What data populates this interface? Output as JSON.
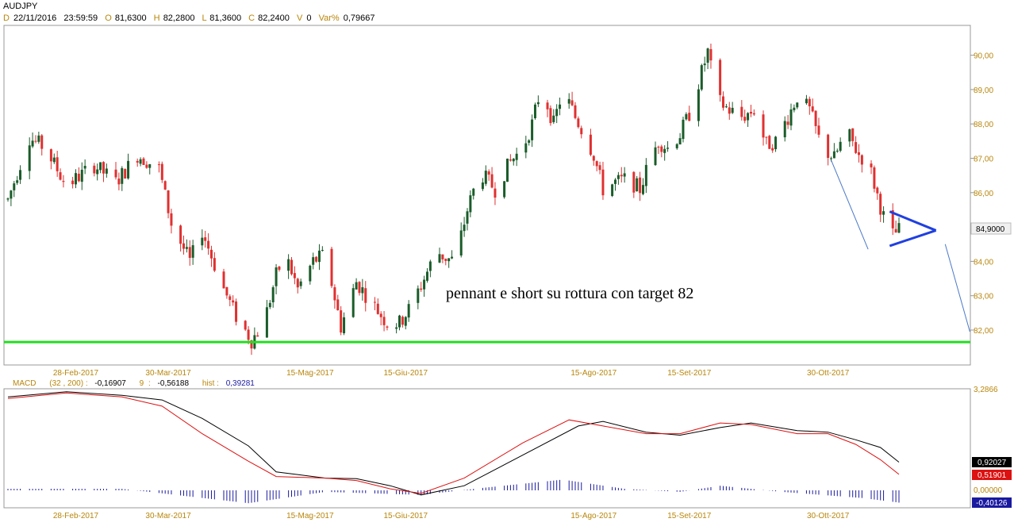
{
  "header": {
    "symbol": "AUDJPY",
    "date_label": "D",
    "date": "22/11/2016",
    "time": "23:59:59",
    "open_label": "O",
    "open": "81,6300",
    "high_label": "H",
    "high": "82,2800",
    "low_label": "L",
    "low": "81,3600",
    "close_label": "C",
    "close": "82,2400",
    "volume_label": "V",
    "volume": "0",
    "var_label": "Var%",
    "var": "0,79667"
  },
  "price_axis": {
    "ticks": [
      "90,00",
      "89,00",
      "88,00",
      "87,00",
      "86,00",
      "84,00",
      "83,00",
      "82,00"
    ],
    "last_price": "84,9000"
  },
  "date_axis": {
    "labels": [
      "28-Feb-2017",
      "30-Mar-2017",
      "15-Mag-2017",
      "15-Giu-2017",
      "15-Ago-2017",
      "15-Set-2017",
      "30-Ott-2017"
    ]
  },
  "annotation": "pennant e short su rottura con target 82",
  "macd": {
    "name": "MACD",
    "params": "(32 , 200) :",
    "macd_value": "-0,16907",
    "signal_period": "9",
    "signal_sep": ":",
    "signal_value": "-0,56188",
    "hist_label": "hist :",
    "hist_value": "0,39281",
    "axis_top": "3,2866",
    "axis_zero": "0,00000",
    "badge_black": "0,92027",
    "badge_red": "0,51901",
    "badge_blue": "-0,40126"
  },
  "colors": {
    "up_candle": "#1a5c2a",
    "down_candle": "#e03030",
    "support_line": "#22dd22",
    "trendline": "#4a78c8",
    "pennant": "#2040e0",
    "macd_line": "#000000",
    "signal_line": "#dd1111",
    "histogram": "#1a1aa0",
    "axis_label": "#b8860b"
  },
  "chart_data": [
    {
      "type": "candlestick",
      "title": "AUDJPY",
      "x_range": [
        "2017-02-06",
        "2017-11-22"
      ],
      "ylim": [
        81.0,
        90.5
      ],
      "price_path": [
        {
          "x": "2017-02-06",
          "y": 85.8
        },
        {
          "x": "2017-02-13",
          "y": 87.6
        },
        {
          "x": "2017-02-18",
          "y": 87.3
        },
        {
          "x": "2017-02-25",
          "y": 86.2
        },
        {
          "x": "2017-03-06",
          "y": 86.8
        },
        {
          "x": "2017-03-13",
          "y": 86.3
        },
        {
          "x": "2017-03-20",
          "y": 87.1
        },
        {
          "x": "2017-03-27",
          "y": 86.7
        },
        {
          "x": "2017-03-31",
          "y": 85.1
        },
        {
          "x": "2017-04-06",
          "y": 84.0
        },
        {
          "x": "2017-04-10",
          "y": 84.9
        },
        {
          "x": "2017-04-16",
          "y": 83.4
        },
        {
          "x": "2017-04-21",
          "y": 82.4
        },
        {
          "x": "2017-04-26",
          "y": 81.7
        },
        {
          "x": "2017-04-30",
          "y": 82.2
        },
        {
          "x": "2017-05-04",
          "y": 83.6
        },
        {
          "x": "2017-05-07",
          "y": 84.2
        },
        {
          "x": "2017-05-11",
          "y": 83.2
        },
        {
          "x": "2017-05-16",
          "y": 84.0
        },
        {
          "x": "2017-05-20",
          "y": 84.2
        },
        {
          "x": "2017-05-25",
          "y": 82.1
        },
        {
          "x": "2017-05-30",
          "y": 83.4
        },
        {
          "x": "2017-06-04",
          "y": 82.8
        },
        {
          "x": "2017-06-09",
          "y": 82.2
        },
        {
          "x": "2017-06-13",
          "y": 82.2
        },
        {
          "x": "2017-06-16",
          "y": 82.6
        },
        {
          "x": "2017-06-20",
          "y": 83.3
        },
        {
          "x": "2017-06-25",
          "y": 84.3
        },
        {
          "x": "2017-06-28",
          "y": 84.1
        },
        {
          "x": "2017-07-01",
          "y": 84.0
        },
        {
          "x": "2017-07-05",
          "y": 85.5
        },
        {
          "x": "2017-07-09",
          "y": 86.6
        },
        {
          "x": "2017-07-14",
          "y": 86.1
        },
        {
          "x": "2017-07-19",
          "y": 86.9
        },
        {
          "x": "2017-07-23",
          "y": 87.3
        },
        {
          "x": "2017-07-26",
          "y": 88.0
        },
        {
          "x": "2017-07-29",
          "y": 89.1
        },
        {
          "x": "2017-08-02",
          "y": 88.0
        },
        {
          "x": "2017-08-05",
          "y": 89.0
        },
        {
          "x": "2017-08-09",
          "y": 88.2
        },
        {
          "x": "2017-08-12",
          "y": 87.7
        },
        {
          "x": "2017-08-15",
          "y": 87.1
        },
        {
          "x": "2017-08-18",
          "y": 86.1
        },
        {
          "x": "2017-08-22",
          "y": 86.3
        },
        {
          "x": "2017-08-26",
          "y": 86.4
        },
        {
          "x": "2017-08-30",
          "y": 86.1
        },
        {
          "x": "2017-09-02",
          "y": 86.9
        },
        {
          "x": "2017-09-05",
          "y": 87.5
        },
        {
          "x": "2017-09-08",
          "y": 87.3
        },
        {
          "x": "2017-09-12",
          "y": 87.7
        },
        {
          "x": "2017-09-15",
          "y": 88.3
        },
        {
          "x": "2017-09-18",
          "y": 89.2
        },
        {
          "x": "2017-09-21",
          "y": 90.1
        },
        {
          "x": "2017-09-24",
          "y": 88.7
        },
        {
          "x": "2017-09-28",
          "y": 88.4
        },
        {
          "x": "2017-10-02",
          "y": 88.2
        },
        {
          "x": "2017-10-06",
          "y": 88.4
        },
        {
          "x": "2017-10-10",
          "y": 87.4
        },
        {
          "x": "2017-10-13",
          "y": 87.5
        },
        {
          "x": "2017-10-17",
          "y": 88.2
        },
        {
          "x": "2017-10-20",
          "y": 88.8
        },
        {
          "x": "2017-10-24",
          "y": 88.4
        },
        {
          "x": "2017-10-28",
          "y": 87.3
        },
        {
          "x": "2017-11-01",
          "y": 87.0
        },
        {
          "x": "2017-11-05",
          "y": 87.8
        },
        {
          "x": "2017-11-09",
          "y": 87.1
        },
        {
          "x": "2017-11-12",
          "y": 86.9
        },
        {
          "x": "2017-11-16",
          "y": 85.6
        },
        {
          "x": "2017-11-19",
          "y": 84.7
        },
        {
          "x": "2017-11-22",
          "y": 84.9
        }
      ],
      "support_level": 81.65,
      "trendlines": [
        {
          "from": {
            "x": "2017-10-31",
            "y": 86.95
          },
          "to": {
            "x": "2017-11-12",
            "y": 84.35
          }
        },
        {
          "from": {
            "x": "2017-12-07",
            "y": 84.5
          },
          "to": {
            "x": "2017-12-15",
            "y": 81.95
          }
        }
      ],
      "pennant": {
        "apex": {
          "x": "2017-12-04",
          "y": 84.9
        },
        "upper_start": {
          "x": "2017-11-19",
          "y": 85.45
        },
        "lower_start": {
          "x": "2017-11-19",
          "y": 84.45
        }
      },
      "annotation": "pennant e short su rottura con target 82",
      "last_price": 84.9
    },
    {
      "type": "line",
      "title": "MACD",
      "ylim": [
        -0.5,
        3.2866
      ],
      "series": [
        {
          "name": "MACD",
          "color": "#000000",
          "points": [
            {
              "x": "2017-02-06",
              "y": 3.05
            },
            {
              "x": "2017-02-25",
              "y": 3.22
            },
            {
              "x": "2017-03-15",
              "y": 3.1
            },
            {
              "x": "2017-03-28",
              "y": 2.95
            },
            {
              "x": "2017-04-10",
              "y": 2.35
            },
            {
              "x": "2017-04-25",
              "y": 1.45
            },
            {
              "x": "2017-05-04",
              "y": 0.6
            },
            {
              "x": "2017-05-20",
              "y": 0.4
            },
            {
              "x": "2017-05-30",
              "y": 0.38
            },
            {
              "x": "2017-06-10",
              "y": 0.15
            },
            {
              "x": "2017-06-20",
              "y": -0.15
            },
            {
              "x": "2017-07-04",
              "y": 0.15
            },
            {
              "x": "2017-07-23",
              "y": 1.15
            },
            {
              "x": "2017-08-10",
              "y": 2.1
            },
            {
              "x": "2017-08-18",
              "y": 2.25
            },
            {
              "x": "2017-09-01",
              "y": 1.9
            },
            {
              "x": "2017-09-12",
              "y": 1.8
            },
            {
              "x": "2017-09-25",
              "y": 2.05
            },
            {
              "x": "2017-10-05",
              "y": 2.2
            },
            {
              "x": "2017-10-20",
              "y": 1.95
            },
            {
              "x": "2017-10-30",
              "y": 1.9
            },
            {
              "x": "2017-11-08",
              "y": 1.65
            },
            {
              "x": "2017-11-16",
              "y": 1.4
            },
            {
              "x": "2017-11-22",
              "y": 0.92
            }
          ]
        },
        {
          "name": "Signal",
          "color": "#dd1111",
          "points": [
            {
              "x": "2017-02-06",
              "y": 3.0
            },
            {
              "x": "2017-02-25",
              "y": 3.18
            },
            {
              "x": "2017-03-15",
              "y": 3.05
            },
            {
              "x": "2017-03-28",
              "y": 2.75
            },
            {
              "x": "2017-04-10",
              "y": 1.85
            },
            {
              "x": "2017-04-25",
              "y": 0.95
            },
            {
              "x": "2017-05-04",
              "y": 0.45
            },
            {
              "x": "2017-05-20",
              "y": 0.4
            },
            {
              "x": "2017-05-30",
              "y": 0.32
            },
            {
              "x": "2017-06-10",
              "y": 0.05
            },
            {
              "x": "2017-06-20",
              "y": -0.1
            },
            {
              "x": "2017-07-04",
              "y": 0.4
            },
            {
              "x": "2017-07-23",
              "y": 1.55
            },
            {
              "x": "2017-08-07",
              "y": 2.3
            },
            {
              "x": "2017-08-18",
              "y": 2.1
            },
            {
              "x": "2017-09-01",
              "y": 1.85
            },
            {
              "x": "2017-09-12",
              "y": 1.85
            },
            {
              "x": "2017-09-25",
              "y": 2.2
            },
            {
              "x": "2017-10-05",
              "y": 2.15
            },
            {
              "x": "2017-10-20",
              "y": 1.85
            },
            {
              "x": "2017-10-30",
              "y": 1.85
            },
            {
              "x": "2017-11-08",
              "y": 1.5
            },
            {
              "x": "2017-11-16",
              "y": 1.0
            },
            {
              "x": "2017-11-22",
              "y": 0.52
            }
          ]
        }
      ],
      "histogram_envelope": [
        {
          "x": "2017-02-06",
          "y": 0.05
        },
        {
          "x": "2017-03-15",
          "y": 0.05
        },
        {
          "x": "2017-04-25",
          "y": -0.42
        },
        {
          "x": "2017-05-20",
          "y": -0.05
        },
        {
          "x": "2017-06-20",
          "y": -0.15
        },
        {
          "x": "2017-07-10",
          "y": 0.08
        },
        {
          "x": "2017-08-05",
          "y": 0.35
        },
        {
          "x": "2017-08-25",
          "y": 0.05
        },
        {
          "x": "2017-09-12",
          "y": -0.05
        },
        {
          "x": "2017-09-25",
          "y": 0.15
        },
        {
          "x": "2017-10-15",
          "y": -0.05
        },
        {
          "x": "2017-11-10",
          "y": -0.25
        },
        {
          "x": "2017-11-22",
          "y": -0.4
        }
      ]
    }
  ]
}
